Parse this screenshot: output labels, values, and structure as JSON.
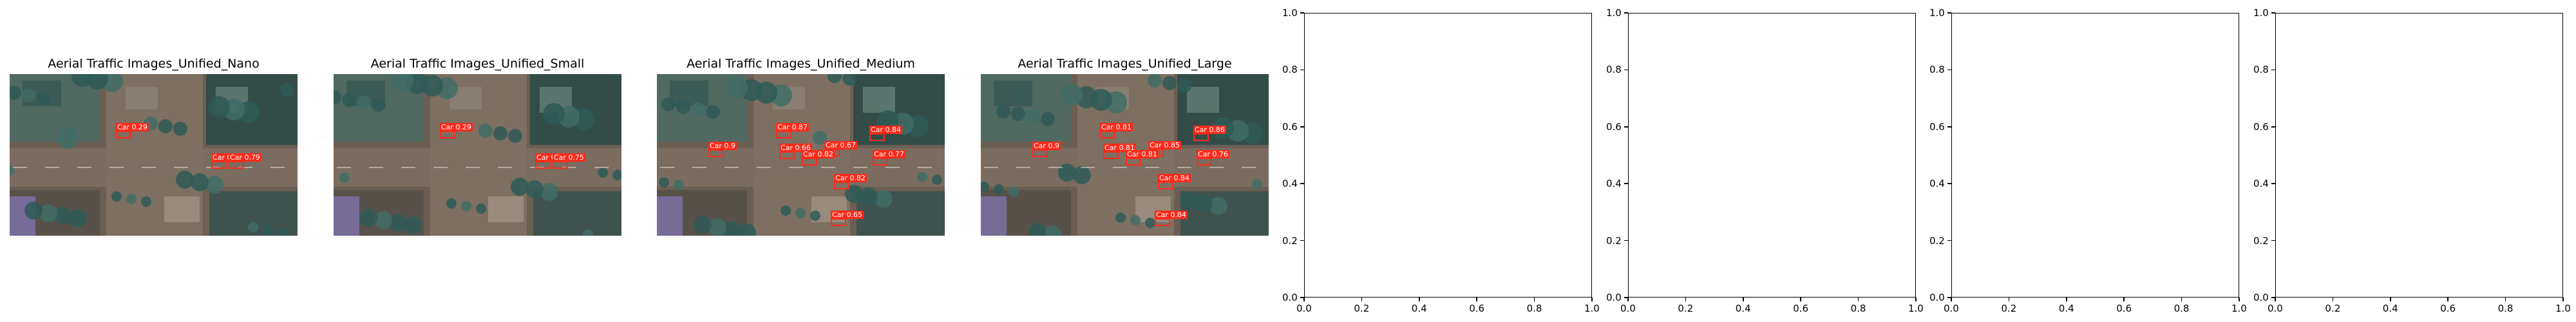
{
  "figure": {
    "image_panels": [
      {
        "title": "Aerial Traffic Images_Unified_Nano",
        "detections": [
          {
            "label": "Car",
            "score": "0.29",
            "cls": "car"
          },
          {
            "label": "Car",
            "score": "0.3",
            "cls": "car"
          },
          {
            "label": "Car",
            "score": "0.79",
            "cls": "car"
          }
        ]
      },
      {
        "title": "Aerial Traffic Images_Unified_Small",
        "detections": [
          {
            "label": "Car",
            "score": "0.29",
            "cls": "car"
          },
          {
            "label": "Car",
            "score": "0.3",
            "cls": "car"
          },
          {
            "label": "Car",
            "score": "0.75",
            "cls": "car"
          }
        ]
      },
      {
        "title": "Aerial Traffic Images_Unified_Medium",
        "detections": [
          {
            "label": "Car",
            "score": "0.87",
            "cls": "car"
          },
          {
            "label": "Car",
            "score": "0.84",
            "cls": "car"
          },
          {
            "label": "Car",
            "score": "0.67",
            "cls": "car"
          },
          {
            "label": "Car",
            "score": "0.66",
            "cls": "car"
          },
          {
            "label": "Car",
            "score": "0.82",
            "cls": "car"
          },
          {
            "label": "Car",
            "score": "0.77",
            "cls": "car"
          },
          {
            "label": "Car",
            "score": "0.82",
            "cls": "car"
          },
          {
            "label": "Car",
            "score": "0.65",
            "cls": "car"
          },
          {
            "label": "Car",
            "score": "0.9",
            "cls": "car"
          }
        ]
      },
      {
        "title": "Aerial Traffic Images_Unified_Large",
        "detections": [
          {
            "label": "Car",
            "score": "0.81",
            "cls": "car"
          },
          {
            "label": "Car",
            "score": "0.86",
            "cls": "car"
          },
          {
            "label": "Car",
            "score": "0.85",
            "cls": "car"
          },
          {
            "label": "Car",
            "score": "0.81",
            "cls": "car"
          },
          {
            "label": "Car",
            "score": "0.84",
            "cls": "car"
          },
          {
            "label": "Car",
            "score": "0.76",
            "cls": "car"
          },
          {
            "label": "Car",
            "score": "0.81",
            "cls": "car"
          },
          {
            "label": "Car",
            "score": "0.84",
            "cls": "car"
          },
          {
            "label": "Car",
            "score": "0.9",
            "cls": "car"
          }
        ]
      }
    ],
    "empty_axes_count": 4
  },
  "chart_data": [
    {
      "type": "other",
      "title": "Aerial Traffic Images_Unified_Nano",
      "content": "image with detection boxes"
    },
    {
      "type": "other",
      "title": "Aerial Traffic Images_Unified_Small",
      "content": "image with detection boxes"
    },
    {
      "type": "other",
      "title": "Aerial Traffic Images_Unified_Medium",
      "content": "image with detection boxes"
    },
    {
      "type": "other",
      "title": "Aerial Traffic Images_Unified_Large",
      "content": "image with detection boxes"
    },
    {
      "type": "scatter",
      "title": "",
      "series": [],
      "xlim": [
        0.0,
        1.0
      ],
      "ylim": [
        0.0,
        1.0
      ],
      "xticks": [
        "0.0",
        "0.2",
        "0.4",
        "0.6",
        "0.8",
        "1.0"
      ],
      "yticks": [
        "0.0",
        "0.2",
        "0.4",
        "0.6",
        "0.8",
        "1.0"
      ]
    },
    {
      "type": "scatter",
      "title": "",
      "series": [],
      "xlim": [
        0.0,
        1.0
      ],
      "ylim": [
        0.0,
        1.0
      ],
      "xticks": [
        "0.0",
        "0.2",
        "0.4",
        "0.6",
        "0.8",
        "1.0"
      ],
      "yticks": [
        "0.0",
        "0.2",
        "0.4",
        "0.6",
        "0.8",
        "1.0"
      ]
    },
    {
      "type": "scatter",
      "title": "",
      "series": [],
      "xlim": [
        0.0,
        1.0
      ],
      "ylim": [
        0.0,
        1.0
      ],
      "xticks": [
        "0.0",
        "0.2",
        "0.4",
        "0.6",
        "0.8",
        "1.0"
      ],
      "yticks": [
        "0.0",
        "0.2",
        "0.4",
        "0.6",
        "0.8",
        "1.0"
      ]
    },
    {
      "type": "scatter",
      "title": "",
      "series": [],
      "xlim": [
        0.0,
        1.0
      ],
      "ylim": [
        0.0,
        1.0
      ],
      "xticks": [
        "0.0",
        "0.2",
        "0.4",
        "0.6",
        "0.8",
        "1.0"
      ],
      "yticks": [
        "0.0",
        "0.2",
        "0.4",
        "0.6",
        "0.8",
        "1.0"
      ]
    }
  ],
  "colors": {
    "car_box": "#ff2a1a",
    "van_box": "#f0e000"
  }
}
